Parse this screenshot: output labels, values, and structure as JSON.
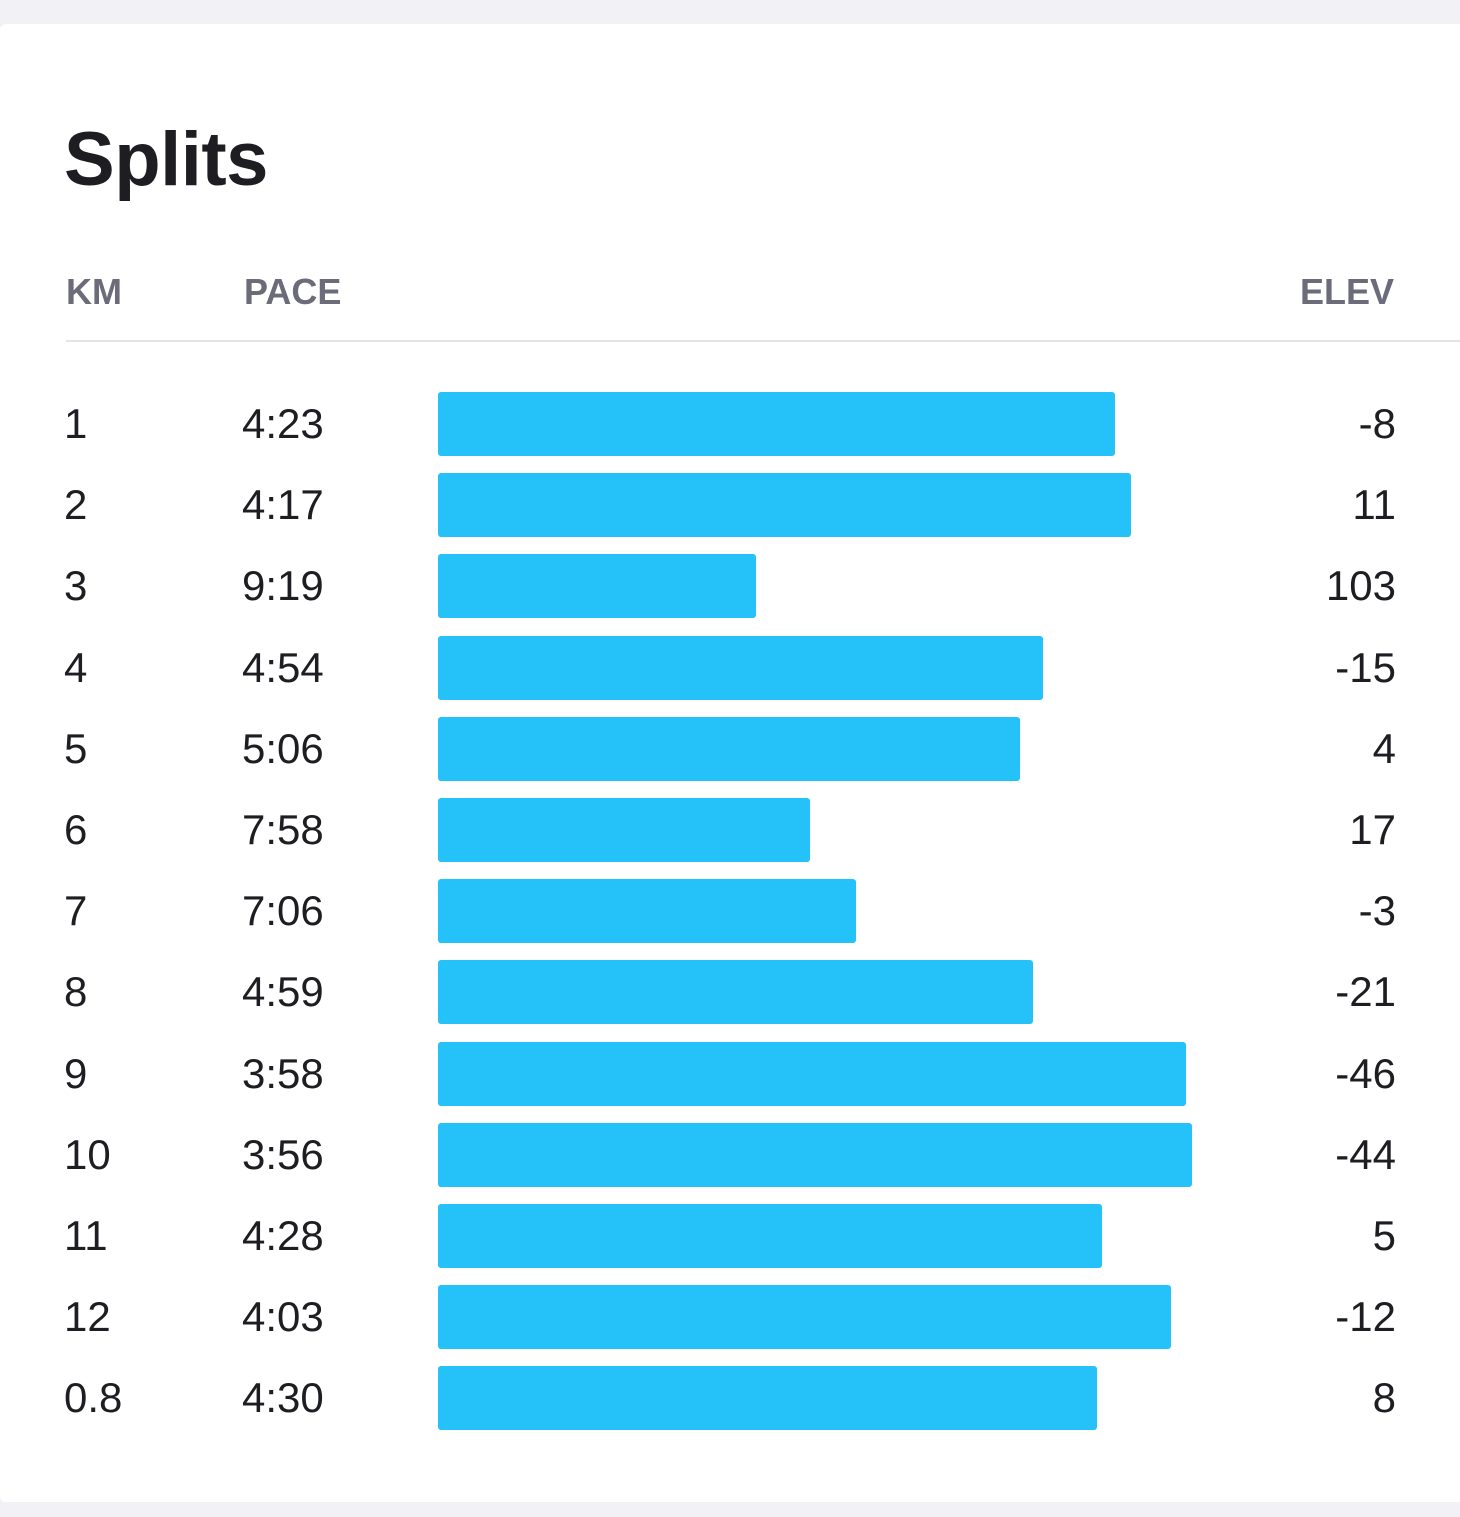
{
  "title": "Splits",
  "columns": {
    "km": "KM",
    "pace": "PACE",
    "elev": "ELEV"
  },
  "colors": {
    "bar": "#25c2fa",
    "header_text": "#6b6b7a"
  },
  "chart_data": {
    "type": "bar",
    "title": "Splits",
    "categories": [
      "1",
      "2",
      "3",
      "4",
      "5",
      "6",
      "7",
      "8",
      "9",
      "10",
      "11",
      "12",
      "0.8"
    ],
    "series": [
      {
        "values": [
          263,
          257,
          559,
          294,
          306,
          478,
          426,
          299,
          238,
          236,
          268,
          243,
          270
        ]
      }
    ],
    "bar_value_meaning": "pace in seconds per km; bar length inversely proportional to pace"
  },
  "splits": [
    {
      "km": "1",
      "pace": "4:23",
      "elev": "-8"
    },
    {
      "km": "2",
      "pace": "4:17",
      "elev": "11"
    },
    {
      "km": "3",
      "pace": "9:19",
      "elev": "103"
    },
    {
      "km": "4",
      "pace": "4:54",
      "elev": "-15"
    },
    {
      "km": "5",
      "pace": "5:06",
      "elev": "4"
    },
    {
      "km": "6",
      "pace": "7:58",
      "elev": "17"
    },
    {
      "km": "7",
      "pace": "7:06",
      "elev": "-3"
    },
    {
      "km": "8",
      "pace": "4:59",
      "elev": "-21"
    },
    {
      "km": "9",
      "pace": "3:58",
      "elev": "-46"
    },
    {
      "km": "10",
      "pace": "3:56",
      "elev": "-44"
    },
    {
      "km": "11",
      "pace": "4:28",
      "elev": "5"
    },
    {
      "km": "12",
      "pace": "4:03",
      "elev": "-12"
    },
    {
      "km": "0.8",
      "pace": "4:30",
      "elev": "8"
    }
  ]
}
